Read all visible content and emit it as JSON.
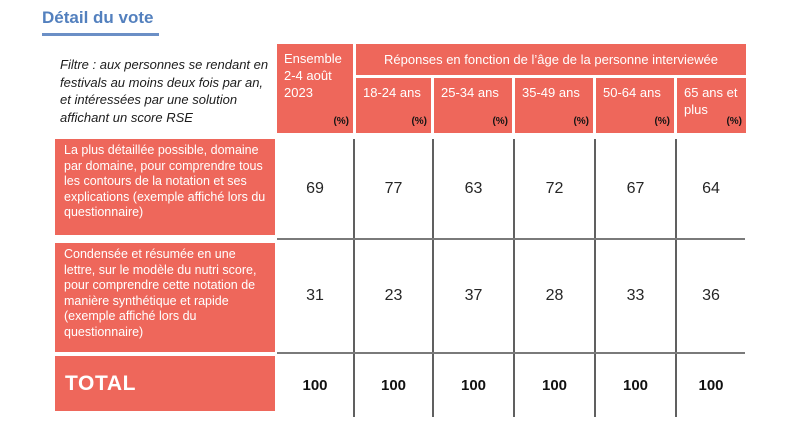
{
  "title": "Détail du vote",
  "colors": {
    "accent_salmon": "#EE675B",
    "title_blue": "#5380BE",
    "grid_line": "#6E6E6E"
  },
  "table": {
    "filter_note": "Filtre : aux personnes se rendant en festivals au moins deux fois par an, et intéressées par une solution affichant un score RSE",
    "unit_label": "(%)",
    "ensemble_header": "Ensemble 2-4 août 2023",
    "age_banner": "Réponses en fonction de l’âge de la personne interviewée",
    "age_columns": [
      "18-24 ans",
      "25-34 ans",
      "35-49 ans",
      "50-64 ans",
      "65 ans et plus"
    ],
    "rows": [
      {
        "label": "La plus détaillée possible, domaine par domaine, pour comprendre tous les contours de la notation et ses explications (exemple affiché lors du questionnaire)",
        "values": [
          69,
          77,
          63,
          72,
          67,
          64
        ]
      },
      {
        "label": "Condensée et résumée en une lettre, sur le modèle du nutri score, pour comprendre cette notation de manière synthétique et rapide (exemple affiché lors du questionnaire)",
        "values": [
          31,
          23,
          37,
          28,
          33,
          36
        ]
      }
    ],
    "total_row": {
      "label": "TOTAL",
      "values": [
        100,
        100,
        100,
        100,
        100,
        100
      ]
    }
  }
}
